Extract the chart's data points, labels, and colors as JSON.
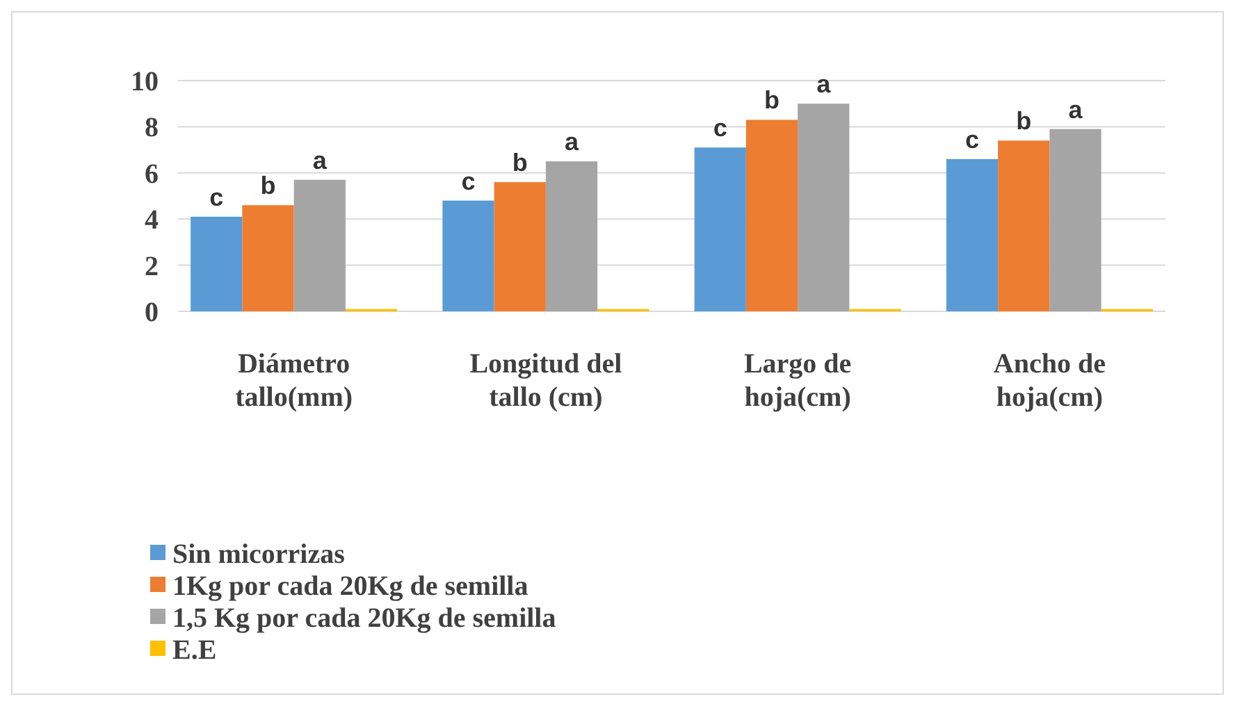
{
  "chart_data": {
    "type": "bar",
    "categories": [
      "Diámetro tallo(mm)",
      "Longitud del tallo (cm)",
      "Largo de hoja(cm)",
      "Ancho de hoja(cm)"
    ],
    "series": [
      {
        "name": "Sin micorrizas",
        "color": "#5b9bd5",
        "values": [
          4.1,
          4.8,
          7.1,
          6.6
        ],
        "value_labels": [
          "c",
          "c",
          "c",
          "c"
        ]
      },
      {
        "name": "1Kg por cada 20Kg de semilla",
        "color": "#ed7d31",
        "values": [
          4.6,
          5.6,
          8.3,
          7.4
        ],
        "value_labels": [
          "b",
          "b",
          "b",
          "b"
        ]
      },
      {
        "name": "1,5 Kg por cada 20Kg de semilla",
        "color": "#a5a5a5",
        "values": [
          5.7,
          6.5,
          9.0,
          7.9
        ],
        "value_labels": [
          "a",
          "a",
          "a",
          "a"
        ]
      },
      {
        "name": "E.E",
        "color": "#ffc000",
        "values": [
          0.1,
          0.1,
          0.1,
          0.1
        ]
      }
    ],
    "ylim": [
      0,
      10
    ],
    "yticks": [
      0,
      2,
      4,
      6,
      8,
      10
    ],
    "grid": "y",
    "legend": "bottom left"
  }
}
